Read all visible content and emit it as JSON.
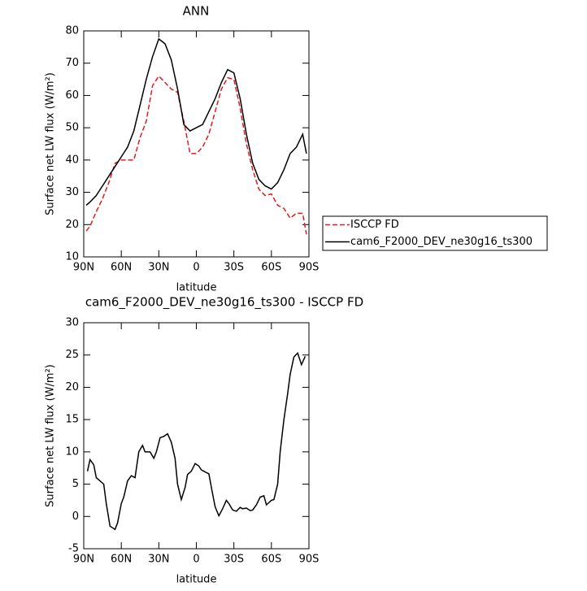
{
  "chart_data": [
    {
      "type": "line",
      "title": "ANN",
      "xlabel": "latitude",
      "ylabel": "Surface net LW flux (W/m²)",
      "x": [
        88,
        85,
        80,
        75,
        70,
        65,
        60,
        55,
        50,
        45,
        40,
        35,
        30,
        25,
        20,
        15,
        10,
        5,
        0,
        -5,
        -10,
        -15,
        -20,
        -25,
        -30,
        -35,
        -40,
        -45,
        -50,
        -55,
        -60,
        -65,
        -70,
        -75,
        -80,
        -85,
        -88
      ],
      "series": [
        {
          "name": "ISCCP FD",
          "color": "#e41a1c",
          "linestyle": "dashed",
          "values": [
            18,
            19.5,
            24,
            28,
            33,
            39,
            40,
            40,
            40,
            47,
            52,
            63,
            66,
            64,
            62,
            61,
            52,
            42,
            42,
            44,
            48,
            55,
            62,
            65.5,
            65,
            56,
            45,
            37,
            31,
            29,
            29.5,
            26,
            25,
            22,
            23.5,
            23.5,
            17
          ]
        },
        {
          "name": "cam6_F2000_DEV_ne30g16_ts300",
          "color": "#000000",
          "linestyle": "solid",
          "values": [
            26,
            27,
            29,
            32,
            35,
            38,
            41,
            44,
            49,
            57,
            65,
            72,
            77.5,
            76,
            71,
            62,
            51,
            49,
            50,
            51,
            55,
            59,
            64,
            68,
            67,
            59,
            48,
            39,
            34,
            32,
            31,
            33,
            37,
            42,
            44,
            48,
            42
          ]
        }
      ],
      "xlim": [
        90,
        -90
      ],
      "xticks": [
        {
          "value": 90,
          "label": "90N"
        },
        {
          "value": 60,
          "label": "60N"
        },
        {
          "value": 30,
          "label": "30N"
        },
        0,
        {
          "value": -30,
          "label": "30S"
        },
        {
          "value": -60,
          "label": "60S"
        },
        {
          "value": -90,
          "label": "90S"
        }
      ],
      "ylim": [
        10,
        80
      ],
      "yticks": [
        10,
        20,
        30,
        40,
        50,
        60,
        70,
        80
      ],
      "legend": "right"
    },
    {
      "type": "line",
      "title": "cam6_F2000_DEV_ne30g16_ts300 - ISCCP FD",
      "xlabel": "latitude",
      "ylabel": "Surface net LW flux (W/m²)",
      "x": [
        87,
        85,
        82,
        80,
        74,
        72,
        69,
        65,
        63,
        60,
        58,
        55,
        52,
        49,
        46,
        43,
        41,
        37,
        34,
        32,
        29,
        26,
        23,
        20,
        17,
        15,
        12,
        9,
        7,
        4,
        1,
        -2,
        -4,
        -8,
        -10,
        -13,
        -15,
        -18,
        -21,
        -24,
        -26,
        -29,
        -32,
        -35,
        -37,
        -40,
        -43,
        -45,
        -48,
        -51,
        -54,
        -56,
        -60,
        -62,
        -65,
        -67,
        -70,
        -73,
        -75,
        -78,
        -81,
        -84,
        -87
      ],
      "values": [
        7,
        8.8,
        8,
        6,
        5,
        2,
        -1.5,
        -2,
        -1,
        2,
        3,
        5.5,
        6.3,
        6,
        10,
        11,
        10,
        10,
        9,
        10,
        12.2,
        12.4,
        12.8,
        11.5,
        9,
        5,
        2.6,
        4.5,
        6.5,
        7,
        8.2,
        7.8,
        7.2,
        6.8,
        6.6,
        3.5,
        1.5,
        0.1,
        1.2,
        2.5,
        2,
        1,
        0.8,
        1.4,
        1.2,
        1.3,
        0.9,
        1,
        1.8,
        3,
        3.2,
        1.8,
        2.5,
        2.6,
        5,
        10,
        15,
        19,
        22,
        24.7,
        25.3,
        23.5,
        24.8
      ],
      "color": "#000000",
      "linestyle": "solid",
      "xlim": [
        90,
        -90
      ],
      "xticks": [
        {
          "value": 90,
          "label": "90N"
        },
        {
          "value": 60,
          "label": "60N"
        },
        {
          "value": 30,
          "label": "30N"
        },
        0,
        {
          "value": -30,
          "label": "30S"
        },
        {
          "value": -60,
          "label": "60S"
        },
        {
          "value": -90,
          "label": "90S"
        }
      ],
      "ylim": [
        -5,
        30
      ],
      "yticks": [
        -5,
        0,
        5,
        10,
        15,
        20,
        25,
        30
      ]
    }
  ]
}
